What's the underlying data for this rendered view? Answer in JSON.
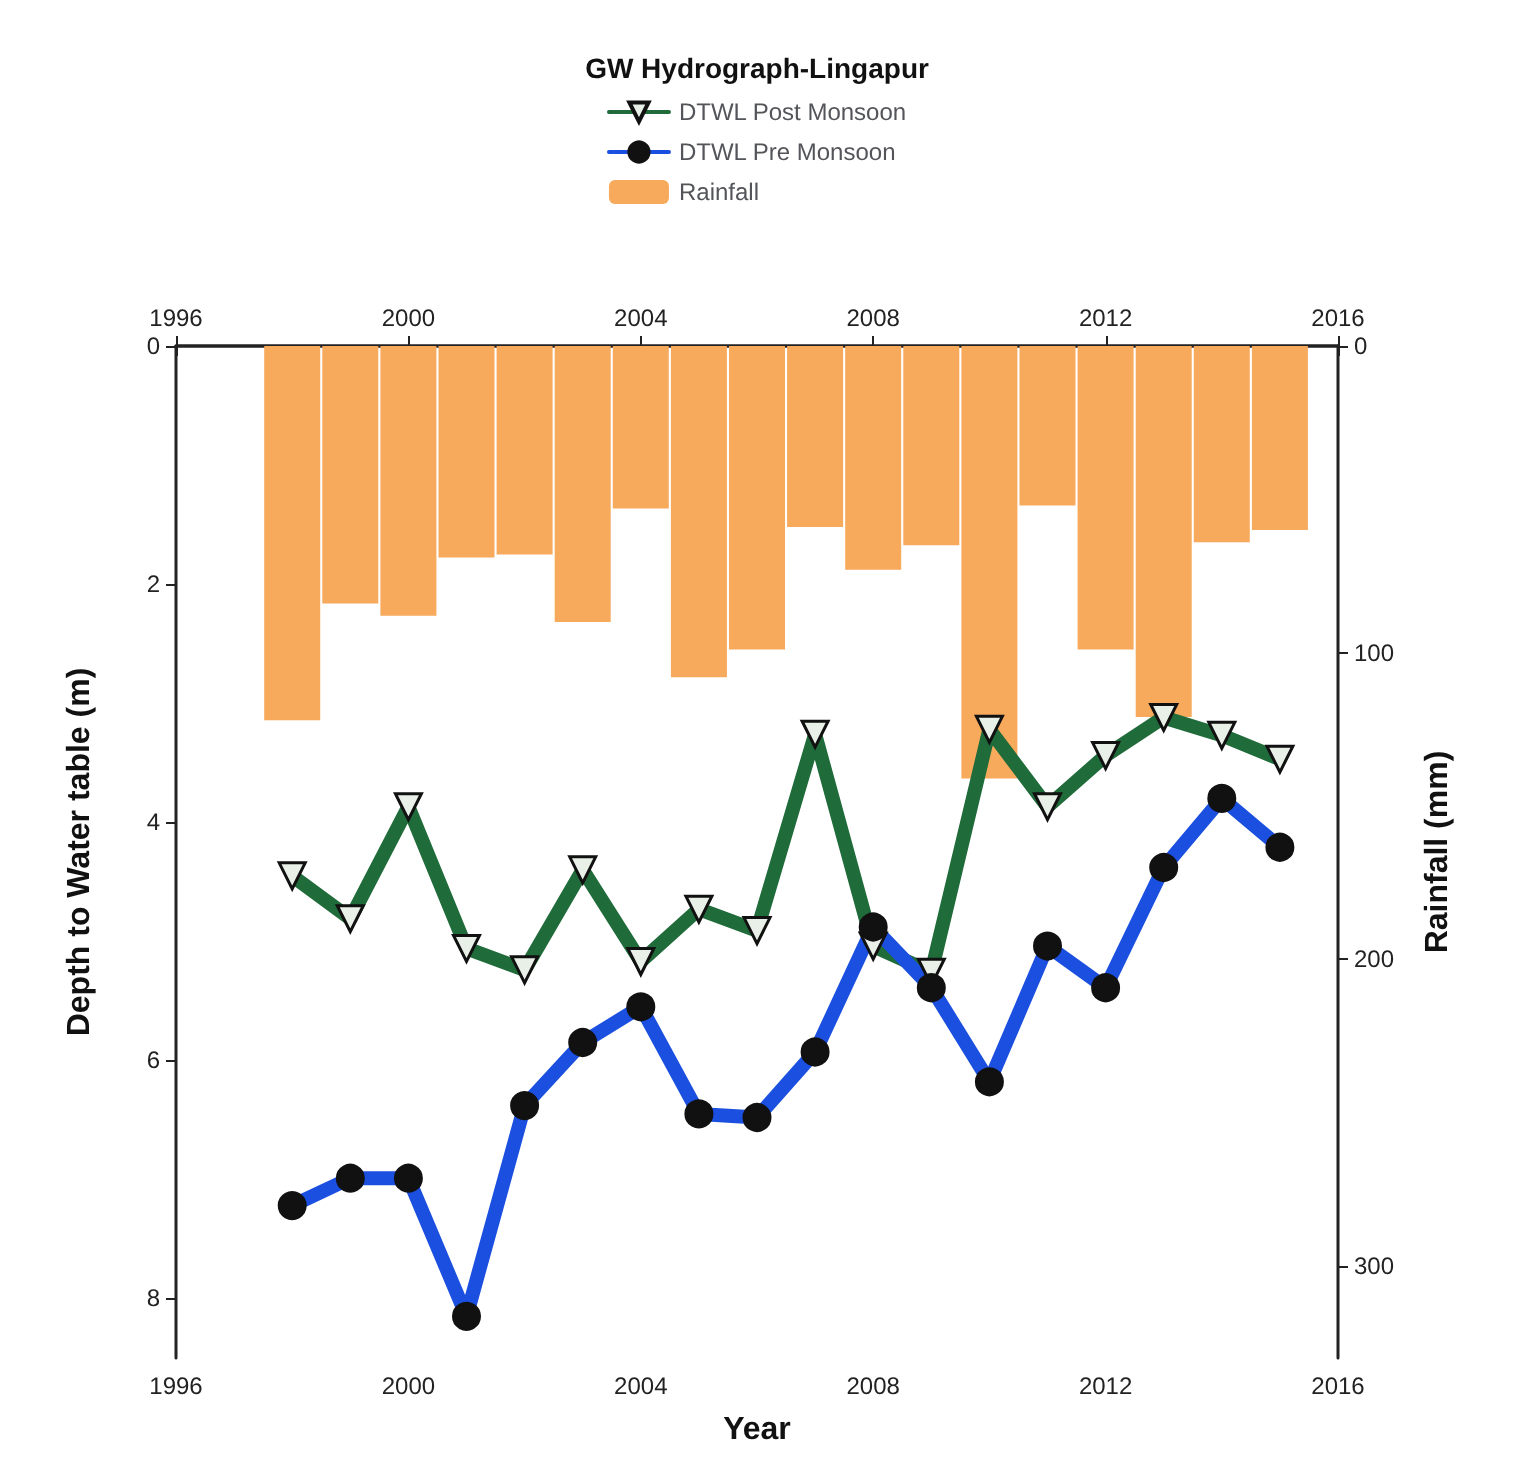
{
  "chart_data": {
    "type": "line",
    "legend_title": "GW Hydrograph-Lingapur",
    "xlabel": "Year",
    "ylabel": "Depth to Water table (m)",
    "y2label": "Rainfall (mm)",
    "x": [
      1998,
      1999,
      2000,
      2001,
      2002,
      2003,
      2004,
      2005,
      2006,
      2007,
      2008,
      2009,
      2010,
      2011,
      2012,
      2013,
      2014,
      2015
    ],
    "series": [
      {
        "name": "DTWL Post Monsoon",
        "color": "#1f6b3a",
        "marker": "triangle",
        "values": [
          4.45,
          4.81,
          3.87,
          5.06,
          5.24,
          4.4,
          5.17,
          4.73,
          4.91,
          3.26,
          5.04,
          5.26,
          3.22,
          3.87,
          3.44,
          3.12,
          3.27,
          3.47
        ]
      },
      {
        "name": "DTWL Pre Monsoon",
        "color": "#1a4fe0",
        "marker": "circle",
        "values": [
          7.22,
          6.99,
          6.99,
          8.15,
          6.38,
          5.85,
          5.55,
          6.45,
          6.48,
          5.93,
          4.88,
          5.39,
          6.18,
          5.04,
          5.39,
          4.38,
          3.8,
          4.21
        ]
      },
      {
        "name": "Rainfall",
        "type": "bar",
        "axis": "y2",
        "color": "#f7a95c",
        "values": [
          122,
          84,
          88,
          69,
          68,
          90,
          53,
          108,
          99,
          59,
          73,
          65,
          141,
          52,
          99,
          121,
          64,
          60
        ]
      }
    ],
    "xlim": [
      1996,
      2016
    ],
    "xticks": [
      1996,
      2000,
      2004,
      2008,
      2012,
      2016
    ],
    "x2lim": [
      1996,
      2016
    ],
    "x2ticks": [
      1996,
      2000,
      2004,
      2008,
      2012,
      2016
    ],
    "ylim": [
      8.5,
      0
    ],
    "yticks": [
      0,
      2,
      4,
      6,
      8
    ],
    "y2lim": [
      330,
      0
    ],
    "y2ticks": [
      0,
      100,
      200,
      300
    ],
    "legend": "top",
    "grid": false
  }
}
